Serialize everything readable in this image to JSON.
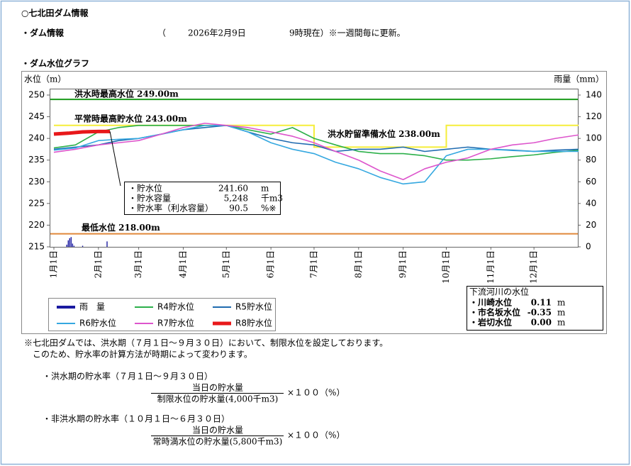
{
  "header": {
    "title": "○七北田ダム情報",
    "info_label": "・ダム情報",
    "info_open": "（",
    "info_date": "2026年2月9日",
    "info_rest": "9時現在）※一週間毎に更新。",
    "date_color": "#1a8a1a",
    "graph_label": "・ダム水位グラフ"
  },
  "chart_data": {
    "type": "line",
    "y_label": "水位（m）",
    "y2_label": "雨量（mm）",
    "xlim": [
      0,
      365
    ],
    "xticks": [
      {
        "value": 0,
        "label": "1月1日"
      },
      {
        "value": 31,
        "label": "2月1日"
      },
      {
        "value": 59,
        "label": "3月1日"
      },
      {
        "value": 90,
        "label": "4月1日"
      },
      {
        "value": 120,
        "label": "5月1日"
      },
      {
        "value": 151,
        "label": "6月1日"
      },
      {
        "value": 181,
        "label": "7月1日"
      },
      {
        "value": 212,
        "label": "8月1日"
      },
      {
        "value": 243,
        "label": "9月1日"
      },
      {
        "value": 273,
        "label": "10月1日"
      },
      {
        "value": 304,
        "label": "11月1日"
      },
      {
        "value": 334,
        "label": "12月1日"
      }
    ],
    "ylim": [
      215,
      250
    ],
    "yticks": [
      215,
      220,
      225,
      230,
      235,
      240,
      245,
      250
    ],
    "y2lim": [
      0,
      140
    ],
    "y2ticks": [
      0,
      20,
      40,
      60,
      80,
      100,
      120,
      140
    ],
    "grid": false,
    "reference_lines": [
      {
        "value": 249,
        "color": "#1a9a1a"
      },
      {
        "value": 218,
        "color": "#e0883a"
      }
    ],
    "limit_line": {
      "color": "#f5ee3a",
      "x": [
        0,
        181,
        181,
        273,
        273,
        365
      ],
      "values": [
        243,
        243,
        238,
        238,
        243,
        243
      ]
    },
    "annotations": [
      {
        "text": "洪水時最高水位 249.00m",
        "value": 249
      },
      {
        "text": "平常時最高貯水位 243.00m",
        "value": 243
      },
      {
        "text": "洪水貯留準備水位 238.00m",
        "value": 238
      },
      {
        "text": "最低水位 218.00m",
        "value": 218
      }
    ],
    "series": [
      {
        "name": "雨　量",
        "type": "bar",
        "axis": "y2",
        "color": "#1a1aa0",
        "x": [
          9,
          10,
          11,
          12,
          13,
          14,
          20,
          37
        ],
        "values": [
          2,
          6,
          8,
          9,
          3,
          1,
          1,
          5
        ]
      },
      {
        "name": "R4貯水位",
        "color": "#2cb04a",
        "x": [
          0,
          15,
          31,
          45,
          59,
          75,
          90,
          105,
          120,
          135,
          151,
          166,
          181,
          196,
          212,
          227,
          243,
          258,
          273,
          288,
          304,
          319,
          334,
          349,
          365
        ],
        "values": [
          237.8,
          238.5,
          241.5,
          242.5,
          243,
          243,
          243,
          243,
          243,
          242,
          241,
          242.5,
          240,
          238.5,
          237,
          236.5,
          236.5,
          236,
          235,
          235,
          235.3,
          235.8,
          236.2,
          236.8,
          237.3
        ]
      },
      {
        "name": "R5貯水位",
        "color": "#1f6bb0",
        "x": [
          0,
          15,
          31,
          45,
          59,
          75,
          90,
          105,
          120,
          135,
          151,
          166,
          181,
          196,
          212,
          227,
          243,
          258,
          273,
          288,
          304,
          319,
          334,
          349,
          365
        ],
        "values": [
          237.5,
          238,
          238.5,
          239.5,
          240,
          241,
          242,
          242.5,
          243,
          241.5,
          240,
          239,
          238.5,
          237,
          237.5,
          237.5,
          238,
          237,
          237.5,
          238,
          237.5,
          237.3,
          237,
          237.3,
          237.5
        ]
      },
      {
        "name": "R6貯水位",
        "color": "#35a8e0",
        "x": [
          0,
          15,
          31,
          45,
          59,
          75,
          90,
          105,
          120,
          135,
          151,
          166,
          181,
          196,
          212,
          227,
          243,
          258,
          273,
          288,
          304,
          319,
          334,
          349,
          365
        ],
        "values": [
          237.3,
          237.8,
          239.5,
          239.8,
          240,
          241,
          242,
          243,
          243,
          241.5,
          239,
          237.5,
          236.5,
          234.5,
          233,
          231,
          229.5,
          230,
          236,
          237.5,
          237.5,
          237.2,
          237,
          237,
          237
        ]
      },
      {
        "name": "R7貯水位",
        "color": "#dd55cc",
        "x": [
          0,
          15,
          31,
          45,
          59,
          75,
          90,
          105,
          120,
          135,
          151,
          166,
          181,
          196,
          212,
          227,
          243,
          258,
          273,
          288,
          304,
          319,
          334,
          349,
          365
        ],
        "values": [
          236.8,
          237.5,
          238.5,
          239,
          239.5,
          241,
          242.5,
          243.5,
          243,
          242.5,
          241.5,
          240.5,
          239,
          237,
          235,
          232.5,
          230.5,
          233,
          234.5,
          235.5,
          237.5,
          238.5,
          239,
          240,
          240.8
        ]
      },
      {
        "name": "R8貯水位",
        "color": "#e8181a",
        "width": 5,
        "x": [
          0,
          10,
          20,
          31,
          39
        ],
        "values": [
          241,
          241.2,
          241.5,
          241.6,
          241.6
        ]
      }
    ]
  },
  "info_box": {
    "rows": [
      {
        "label": "・貯水位",
        "value": "241.60",
        "unit": "m"
      },
      {
        "label": "・貯水容量",
        "value": "5,248",
        "unit": "千m3"
      },
      {
        "label": "・貯水率（利水容量）",
        "value": "90.5",
        "unit": "%※"
      }
    ],
    "value_color": "#1a8a1a"
  },
  "downstream": {
    "title": "下流河川の水位",
    "rows": [
      {
        "label": "・川崎水位",
        "value": "0.11",
        "unit": "m",
        "color": "#1a8a1a"
      },
      {
        "label": "・市名坂水位",
        "value": "-0.35",
        "unit": "m",
        "color": "#e01818"
      },
      {
        "label": "・岩切水位",
        "value": "0.00",
        "unit": "m",
        "color": "#1a8a1a"
      }
    ]
  },
  "notes": [
    "※七北田ダムでは、洪水期（７月１日～９月３０日）において、制限水位を設定しております。",
    "このため、貯水率の計算方法が時期によって変わります。"
  ],
  "formulas": [
    {
      "title": "・洪水期の貯水率（７月１日～９月３０日）",
      "numerator": "当日の貯水量",
      "denominator": "制限水位の貯水量(4,000千m3)",
      "factor": "×１００（%）"
    },
    {
      "title": "・非洪水期の貯水率（１０月１日～６月３０日）",
      "numerator": "当日の貯水量",
      "denominator": "常時満水位の貯水量(5,800千m3)",
      "factor": "×１００（%）"
    }
  ]
}
